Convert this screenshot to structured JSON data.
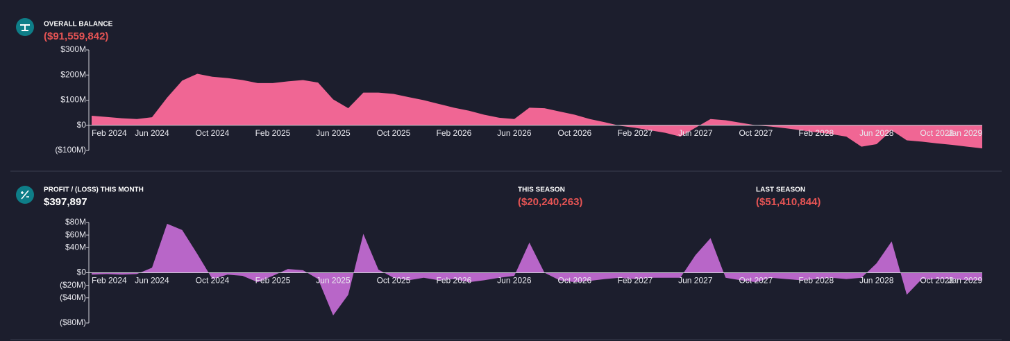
{
  "chart_data": [
    {
      "type": "area",
      "title": "OVERALL BALANCE",
      "subtitle": "($91,559,842)",
      "color": "#f06694",
      "categories": [
        "Feb 2024",
        null,
        null,
        null,
        "Jun 2024",
        null,
        null,
        null,
        "Oct 2024",
        null,
        null,
        null,
        "Feb 2025",
        null,
        null,
        null,
        "Jun 2025",
        null,
        null,
        null,
        "Oct 2025",
        null,
        null,
        null,
        "Feb 2026",
        null,
        null,
        null,
        "Jun 2026",
        null,
        null,
        null,
        "Oct 2026",
        null,
        null,
        null,
        "Feb 2027",
        null,
        null,
        null,
        "Jun 2027",
        null,
        null,
        null,
        "Oct 2027",
        null,
        null,
        null,
        "Feb 2028",
        null,
        null,
        null,
        "Jun 2028",
        null,
        null,
        null,
        "Oct 2028",
        null,
        null,
        "Jan 2029"
      ],
      "values": [
        38,
        33,
        28,
        25,
        32,
        110,
        178,
        205,
        193,
        188,
        180,
        168,
        168,
        175,
        180,
        170,
        103,
        68,
        130,
        130,
        125,
        112,
        100,
        85,
        70,
        58,
        42,
        30,
        25,
        70,
        68,
        55,
        42,
        25,
        12,
        -2,
        -10,
        -20,
        -30,
        -45,
        -10,
        25,
        20,
        10,
        0,
        -5,
        -12,
        -20,
        -28,
        -35,
        -45,
        -85,
        -75,
        -20,
        -60,
        -65,
        -72,
        -78,
        -85,
        -92
      ],
      "ylim": [
        -100,
        300
      ],
      "yticks": [
        {
          "value": -100,
          "label": "($100M)"
        },
        {
          "value": 0,
          "label": "$0"
        },
        {
          "value": 100,
          "label": "$100M"
        },
        {
          "value": 200,
          "label": "$200M"
        },
        {
          "value": 300,
          "label": "$300M"
        }
      ]
    },
    {
      "type": "area",
      "title": "PROFIT / (LOSS) THIS MONTH",
      "subtitle": "$397,897",
      "color": "#b866c8",
      "categories": [
        "Feb 2024",
        null,
        null,
        null,
        "Jun 2024",
        null,
        null,
        null,
        "Oct 2024",
        null,
        null,
        null,
        "Feb 2025",
        null,
        null,
        null,
        "Jun 2025",
        null,
        null,
        null,
        "Oct 2025",
        null,
        null,
        null,
        "Feb 2026",
        null,
        null,
        null,
        "Jun 2026",
        null,
        null,
        null,
        "Oct 2026",
        null,
        null,
        null,
        "Feb 2027",
        null,
        null,
        null,
        "Jun 2027",
        null,
        null,
        null,
        "Oct 2027",
        null,
        null,
        null,
        "Feb 2028",
        null,
        null,
        null,
        "Jun 2028",
        null,
        null,
        null,
        "Oct 2028",
        null,
        null,
        "Jan 2029"
      ],
      "values": [
        -3,
        -2,
        -3,
        -2,
        8,
        78,
        68,
        30,
        -10,
        -3,
        -5,
        -15,
        -5,
        6,
        4,
        -10,
        -68,
        -35,
        62,
        5,
        -8,
        -12,
        -8,
        -12,
        -10,
        -15,
        -12,
        -8,
        -5,
        48,
        0,
        -12,
        -15,
        -13,
        -10,
        -8,
        -10,
        -8,
        -8,
        -8,
        28,
        55,
        -8,
        -12,
        -15,
        -8,
        -10,
        -12,
        -10,
        -8,
        -10,
        -8,
        15,
        50,
        -35,
        -10,
        -10,
        -10,
        -12,
        -12
      ],
      "ylim": [
        -80,
        80
      ],
      "yticks": [
        {
          "value": -80,
          "label": "($80M)"
        },
        {
          "value": -40,
          "label": "($40M)"
        },
        {
          "value": -20,
          "label": "($20M)"
        },
        {
          "value": 0,
          "label": "$0"
        },
        {
          "value": 40,
          "label": "$40M"
        },
        {
          "value": 60,
          "label": "$60M"
        },
        {
          "value": 80,
          "label": "$80M"
        }
      ]
    }
  ],
  "stats": [
    {
      "label": "THIS SEASON",
      "value": "($20,240,263)"
    },
    {
      "label": "LAST SEASON",
      "value": "($51,410,844)"
    }
  ]
}
